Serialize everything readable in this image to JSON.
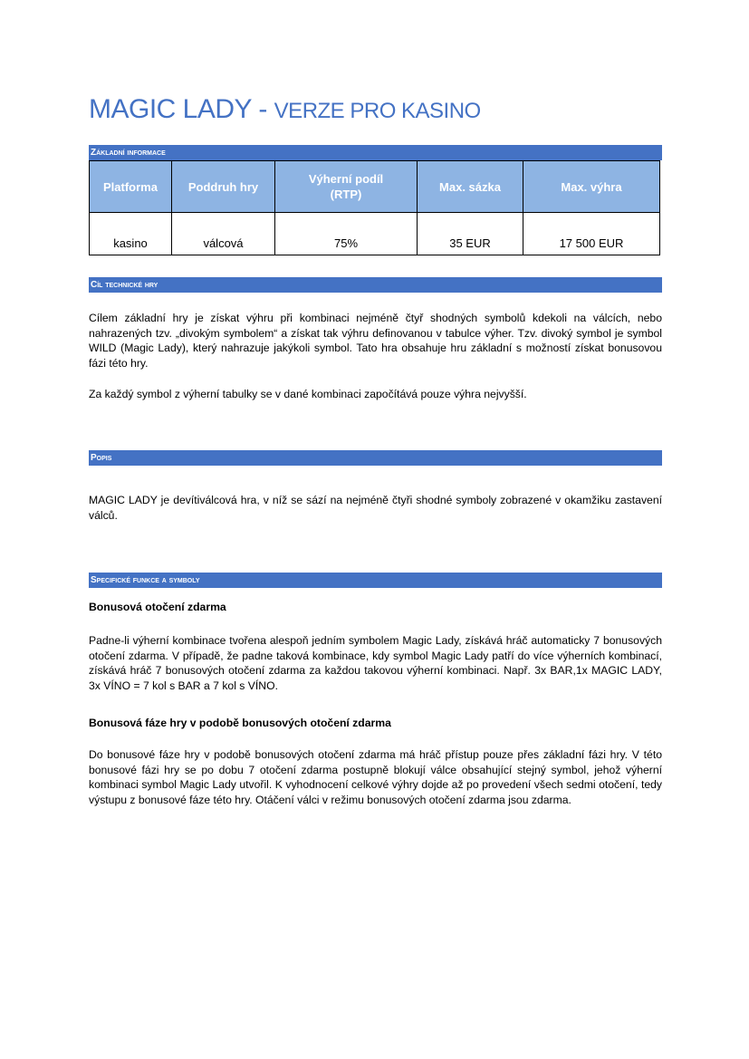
{
  "title": {
    "main": "MAGIC LADY - ",
    "sub": "VERZE PRO KASINO"
  },
  "sections": {
    "basic": "Základní informace",
    "goal": "Cíl technické hry",
    "desc": "Popis",
    "features": "Specifické funkce a symboly"
  },
  "table": {
    "headers": [
      "Platforma",
      "Poddruh hry",
      "Výherní podíl (RTP)",
      "Max. sázka",
      "Max. výhra"
    ],
    "row": [
      "kasino",
      "válcová",
      "75%",
      "35 EUR",
      "17 500 EUR"
    ]
  },
  "goal": {
    "p1": "Cílem základní hry je získat výhru při kombinaci nejméně čtyř shodných symbolů kdekoli na válcích, nebo nahrazených tzv. „divokým symbolem“ a získat tak výhru definovanou v tabulce výher. Tzv. divoký symbol je symbol WILD (Magic Lady), který nahrazuje jakýkoli symbol. Tato hra obsahuje hru základní s možností získat bonusovou fázi této hry.",
    "p2": "Za každý symbol z výherní tabulky se v dané kombinaci započítává pouze výhra nejvyšší."
  },
  "desc": {
    "p1": "MAGIC LADY je devítiválcová hra, v níž se sází na nejméně čtyři shodné symboly zobrazené v okamžiku zastavení válců."
  },
  "features": {
    "h1": "Bonusová otočení zdarma",
    "p1": "Padne-li výherní kombinace tvořena alespoň jedním symbolem Magic Lady, získává hráč automaticky 7 bonusových otočení zdarma. V případě, že padne taková kombinace, kdy symbol Magic Lady patří do více výherních kombinací, získává hráč 7 bonusových otočení zdarma za každou takovou výherní kombinaci. Např. 3x BAR,1x MAGIC LADY, 3x VÍNO = 7 kol s BAR a 7 kol s VÍNO.",
    "h2": "Bonusová fáze hry v podobě bonusových otočení zdarma",
    "p2": "Do bonusové fáze hry v podobě bonusových otočení zdarma má hráč přístup pouze přes základní fázi hry. V této bonusové fázi hry se po dobu 7 otočení zdarma postupně blokují válce obsahující stejný symbol, jehož výherní kombinaci symbol Magic Lady utvořil. K vyhodnocení celkové výhry dojde až po provedení všech sedmi otočení, tedy výstupu z bonusové fáze této hry. Otáčení válci v režimu bonusových otočení zdarma jsou zdarma."
  },
  "colors": {
    "accent": "#4472C4",
    "table_header": "#8EB4E3"
  }
}
